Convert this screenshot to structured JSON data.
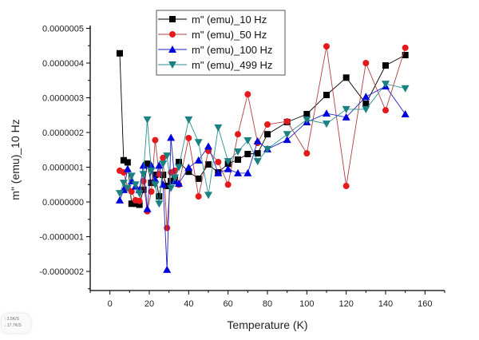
{
  "chart_data": {
    "type": "line",
    "title": "",
    "xlabel": "Temperature (K)",
    "ylabel": "m\" (emu)_10 Hz",
    "xlim": [
      -10,
      170
    ],
    "ylim": [
      -2.55e-07,
      5.08e-07
    ],
    "xticks": [
      0,
      20,
      40,
      60,
      80,
      100,
      120,
      140,
      160
    ],
    "xtick_labels": [
      "0",
      "20",
      "40",
      "60",
      "80",
      "100",
      "120",
      "140",
      "160"
    ],
    "yticks": [
      -2e-07,
      -1e-07,
      0,
      1e-07,
      2e-07,
      3e-07,
      4e-07,
      5e-07
    ],
    "ytick_labels": [
      "-0.0000002",
      "-0.0000001",
      "0.0000000",
      "0.0000001",
      "0.0000002",
      "0.0000003",
      "0.0000004",
      "0.0000005"
    ],
    "grid": false,
    "legend_position": "top-center",
    "series": [
      {
        "name": "m\" (emu)_10 Hz",
        "color": "#000000",
        "marker": "square",
        "x": [
          5,
          7,
          9,
          11,
          13,
          15,
          17,
          19,
          21,
          23,
          25,
          27,
          29,
          31,
          33,
          35,
          40,
          45,
          50,
          55,
          60,
          65,
          70,
          75,
          80,
          90,
          100,
          110,
          120,
          130,
          140,
          150
        ],
        "y": [
          4.28e-07,
          1.2e-07,
          1.14e-07,
          -5e-09,
          -5e-09,
          -8e-09,
          3.5e-08,
          1.1e-07,
          5.5e-08,
          7.8e-08,
          1.6e-08,
          7.8e-08,
          4.6e-08,
          6e-08,
          7e-08,
          1.15e-07,
          8.7e-08,
          6.7e-08,
          1.08e-07,
          8.5e-08,
          1.1e-07,
          1.22e-07,
          1.38e-07,
          1.4e-07,
          1.95e-07,
          2.3e-07,
          2.53e-07,
          3.08e-07,
          3.58e-07,
          2.83e-07,
          3.93e-07,
          4.23e-07
        ]
      },
      {
        "name": "m\" (emu)_50 Hz",
        "color": "#e41a1c",
        "marker": "circle",
        "x": [
          5,
          7,
          9,
          11,
          13,
          15,
          17,
          19,
          21,
          23,
          25,
          27,
          29,
          31,
          33,
          35,
          40,
          45,
          50,
          55,
          60,
          65,
          70,
          75,
          80,
          90,
          100,
          110,
          120,
          130,
          140,
          150
        ],
        "y": [
          9e-08,
          8.5e-08,
          4e-08,
          3e-08,
          5e-09,
          3e-09,
          6e-08,
          -2.7e-08,
          3e-08,
          1.78e-07,
          8e-08,
          1.27e-07,
          -7.5e-08,
          8.5e-08,
          9e-08,
          5e-08,
          1.84e-07,
          1.6e-08,
          1.47e-07,
          1.15e-07,
          5e-08,
          1.95e-07,
          3.1e-07,
          1.7e-07,
          2.23e-07,
          2.32e-07,
          1.4e-07,
          4.48e-07,
          4.6e-08,
          4e-07,
          2.64e-07,
          4.44e-07
        ]
      },
      {
        "name": "m\" (emu)_100 Hz",
        "color": "#0000dd",
        "marker": "triangle-up",
        "x": [
          5,
          7,
          9,
          11,
          13,
          15,
          17,
          19,
          21,
          23,
          25,
          27,
          29,
          31,
          33,
          35,
          40,
          45,
          50,
          55,
          60,
          65,
          70,
          75,
          80,
          90,
          100,
          110,
          120,
          130,
          140,
          150
        ],
        "y": [
          5e-09,
          3.5e-08,
          9.5e-08,
          6e-08,
          4.5e-08,
          3.5e-08,
          1.05e-07,
          -2e-08,
          1.05e-07,
          6.5e-08,
          1.05e-07,
          5e-08,
          -1.95e-07,
          1.85e-07,
          6e-08,
          5.3e-08,
          9.9e-08,
          1.2e-07,
          1.6e-07,
          8.3e-08,
          9.5e-08,
          8.3e-08,
          8.3e-08,
          1.75e-07,
          1.52e-07,
          1.79e-07,
          2.3e-07,
          2.55e-07,
          2.44e-07,
          3.03e-07,
          3.33e-07,
          2.53e-07
        ]
      },
      {
        "name": "m\" (emu)_499 Hz",
        "color": "#1a8080",
        "marker": "triangle-down",
        "x": [
          5,
          7,
          9,
          11,
          13,
          15,
          17,
          19,
          21,
          23,
          25,
          27,
          29,
          31,
          33,
          35,
          40,
          45,
          50,
          55,
          60,
          65,
          70,
          75,
          80,
          90,
          100,
          110,
          120,
          130,
          140,
          150
        ],
        "y": [
          2.5e-08,
          5.5e-08,
          4e-08,
          7.5e-08,
          5e-08,
          2.5e-08,
          8e-08,
          2.37e-07,
          9e-08,
          5e-08,
          -5e-09,
          1.1e-07,
          1.33e-07,
          4e-08,
          7e-08,
          1e-07,
          2.37e-07,
          1.72e-07,
          2e-08,
          2.14e-07,
          1.17e-07,
          1.45e-07,
          1.77e-07,
          1.17e-07,
          1.52e-07,
          1.95e-07,
          2.37e-07,
          2.25e-07,
          2.67e-07,
          2.67e-07,
          3.4e-07,
          3.27e-07
        ]
      }
    ]
  },
  "net_widget": {
    "up_icon": "arrow-up-icon",
    "up_arrow": "↑",
    "up_speed": "2.5K/S",
    "down_icon": "arrow-down-icon",
    "down_arrow": "↓",
    "down_speed": "17.7K/S"
  }
}
